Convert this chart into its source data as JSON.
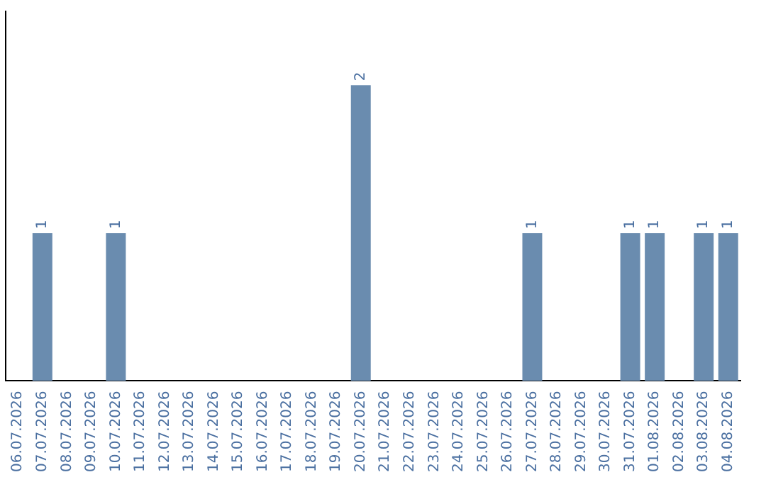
{
  "chart_data": {
    "type": "bar",
    "categories": [
      "06.07.2026",
      "07.07.2026",
      "08.07.2026",
      "09.07.2026",
      "10.07.2026",
      "11.07.2026",
      "12.07.2026",
      "13.07.2026",
      "14.07.2026",
      "15.07.2026",
      "16.07.2026",
      "17.07.2026",
      "18.07.2026",
      "19.07.2026",
      "20.07.2026",
      "21.07.2026",
      "22.07.2026",
      "23.07.2026",
      "24.07.2026",
      "25.07.2026",
      "26.07.2026",
      "27.07.2026",
      "28.07.2026",
      "29.07.2026",
      "30.07.2026",
      "31.07.2026",
      "01.08.2026",
      "02.08.2026",
      "03.08.2026",
      "04.08.2026"
    ],
    "values": [
      0,
      1,
      0,
      0,
      1,
      0,
      0,
      0,
      0,
      0,
      0,
      0,
      0,
      0,
      2,
      0,
      0,
      0,
      0,
      0,
      0,
      1,
      0,
      0,
      0,
      1,
      1,
      0,
      1,
      1
    ],
    "value_labels": [
      null,
      "1",
      null,
      null,
      "1",
      null,
      null,
      null,
      null,
      null,
      null,
      null,
      null,
      null,
      "2",
      null,
      null,
      null,
      null,
      null,
      null,
      "1",
      null,
      null,
      null,
      "1",
      "1",
      null,
      "1",
      "1"
    ],
    "color": "#6a8caf"
  }
}
